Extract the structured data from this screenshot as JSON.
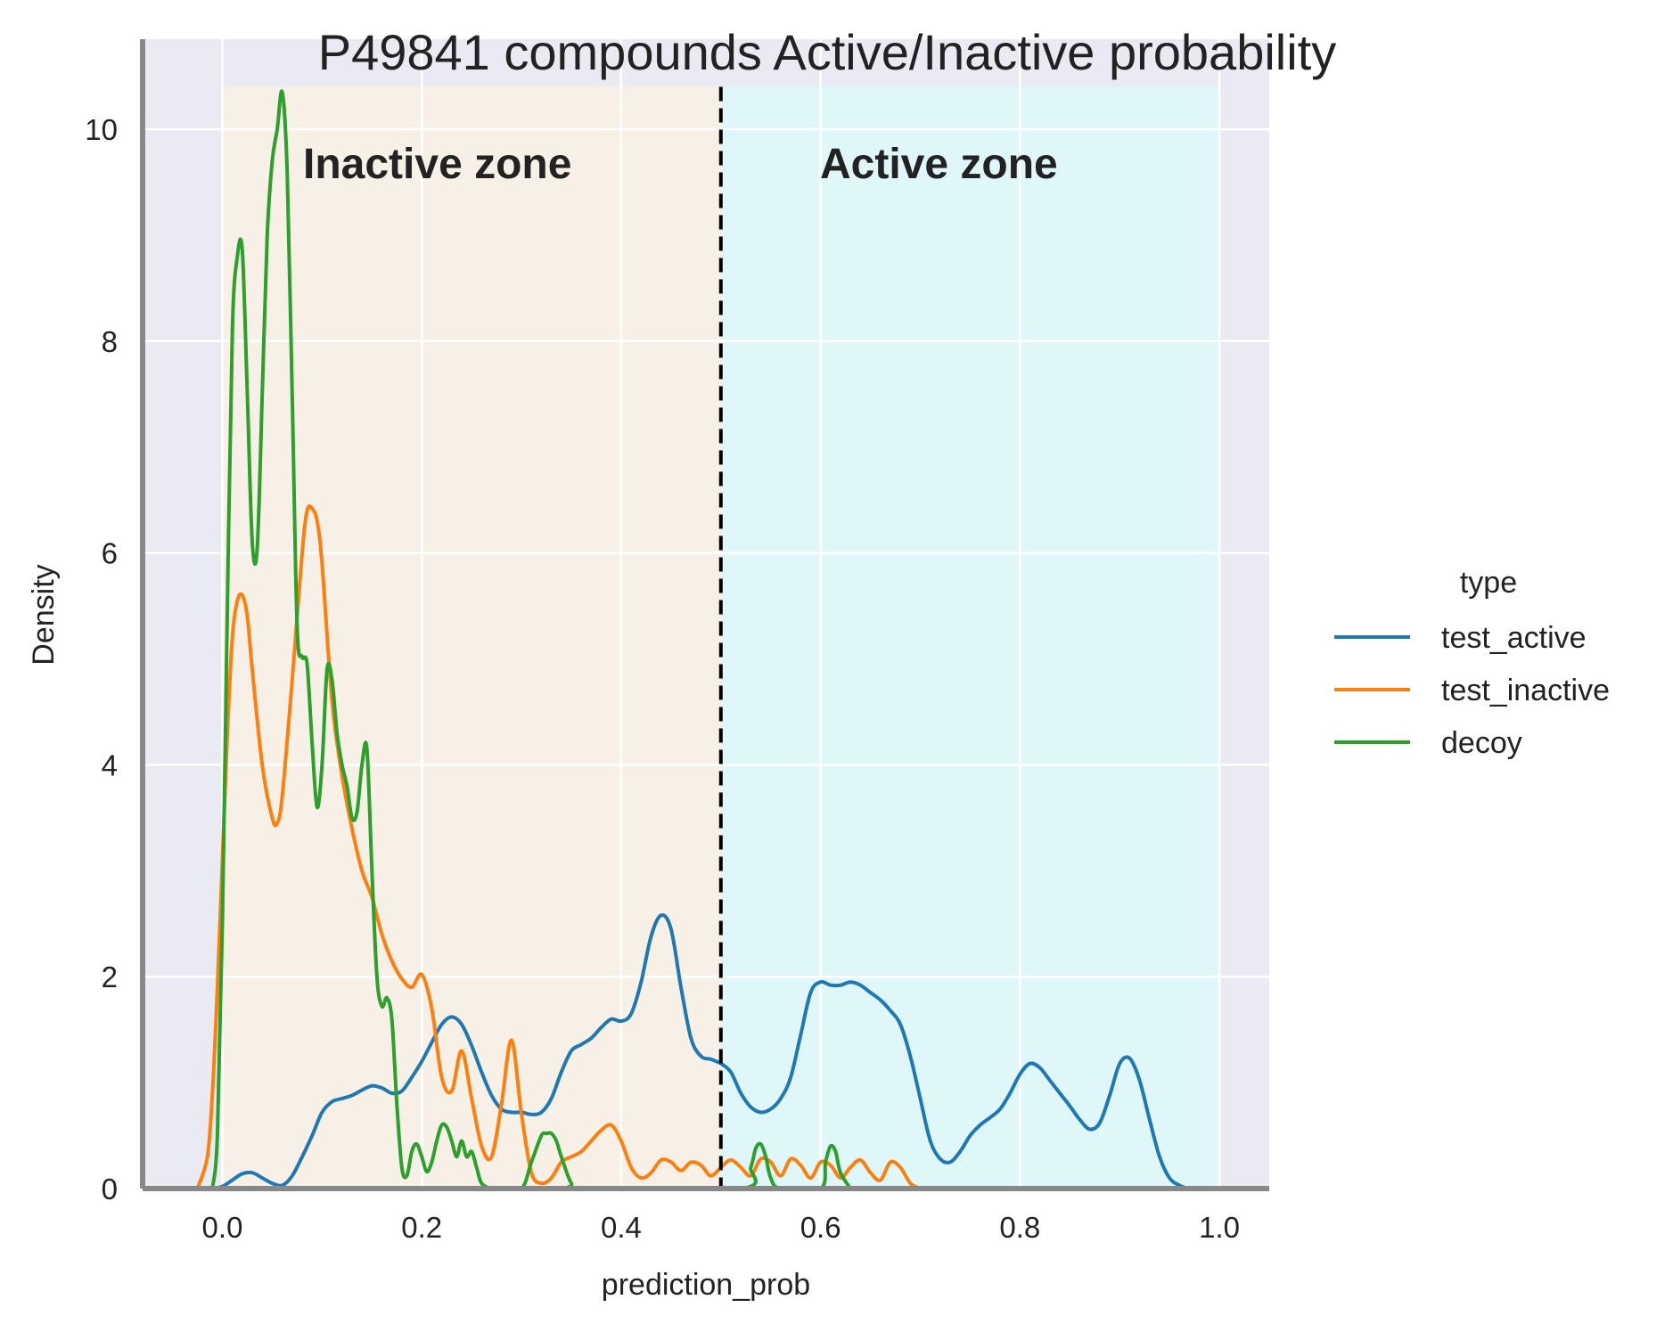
{
  "chart_data": {
    "type": "line",
    "title": "P49841 compounds Active/Inactive probability",
    "xlabel": "prediction_prob",
    "ylabel": "Density",
    "xlim": [
      -0.08,
      1.05
    ],
    "ylim": [
      0,
      10.85
    ],
    "xticks": [
      0.0,
      0.2,
      0.4,
      0.6,
      0.8,
      1.0
    ],
    "xtick_labels": [
      "0.0",
      "0.2",
      "0.4",
      "0.6",
      "0.8",
      "1.0"
    ],
    "yticks": [
      0,
      2,
      4,
      6,
      8,
      10
    ],
    "ytick_labels": [
      "0",
      "2",
      "4",
      "6",
      "8",
      "10"
    ],
    "grid": true,
    "threshold": 0.5,
    "zones": [
      {
        "label": "Inactive zone",
        "x_range": [
          0.0,
          0.5
        ],
        "y_top": 10.4,
        "color": "#f7f0e6"
      },
      {
        "label": "Active zone",
        "x_range": [
          0.5,
          1.0
        ],
        "y_top": 10.4,
        "color": "#e0f7fa"
      }
    ],
    "legend": {
      "title": "type",
      "position": "right"
    },
    "series": [
      {
        "name": "test_active",
        "color": "#1f77b4",
        "x": [
          -0.01,
          0.0,
          0.01,
          0.02,
          0.03,
          0.04,
          0.05,
          0.06,
          0.07,
          0.08,
          0.09,
          0.1,
          0.11,
          0.12,
          0.13,
          0.14,
          0.15,
          0.16,
          0.17,
          0.18,
          0.19,
          0.2,
          0.21,
          0.22,
          0.23,
          0.24,
          0.25,
          0.26,
          0.27,
          0.28,
          0.29,
          0.3,
          0.31,
          0.32,
          0.33,
          0.34,
          0.35,
          0.36,
          0.37,
          0.38,
          0.39,
          0.4,
          0.41,
          0.42,
          0.43,
          0.44,
          0.45,
          0.46,
          0.47,
          0.48,
          0.49,
          0.5,
          0.51,
          0.52,
          0.53,
          0.54,
          0.55,
          0.56,
          0.57,
          0.58,
          0.59,
          0.6,
          0.61,
          0.62,
          0.63,
          0.64,
          0.65,
          0.66,
          0.67,
          0.68,
          0.69,
          0.7,
          0.71,
          0.72,
          0.73,
          0.74,
          0.75,
          0.76,
          0.77,
          0.78,
          0.79,
          0.8,
          0.81,
          0.82,
          0.83,
          0.84,
          0.85,
          0.86,
          0.87,
          0.88,
          0.89,
          0.9,
          0.91,
          0.92,
          0.93,
          0.94,
          0.95,
          0.96,
          0.97,
          0.98
        ],
        "y": [
          0.0,
          0.02,
          0.08,
          0.14,
          0.15,
          0.1,
          0.05,
          0.03,
          0.12,
          0.3,
          0.5,
          0.72,
          0.82,
          0.85,
          0.88,
          0.93,
          0.97,
          0.95,
          0.9,
          0.92,
          1.05,
          1.2,
          1.38,
          1.55,
          1.62,
          1.55,
          1.35,
          1.1,
          0.88,
          0.75,
          0.72,
          0.72,
          0.7,
          0.72,
          0.85,
          1.1,
          1.3,
          1.36,
          1.42,
          1.52,
          1.6,
          1.58,
          1.65,
          1.95,
          2.38,
          2.58,
          2.45,
          1.9,
          1.42,
          1.25,
          1.22,
          1.18,
          1.1,
          0.9,
          0.77,
          0.72,
          0.75,
          0.85,
          1.05,
          1.45,
          1.85,
          1.95,
          1.92,
          1.92,
          1.95,
          1.92,
          1.85,
          1.78,
          1.68,
          1.55,
          1.25,
          0.85,
          0.45,
          0.28,
          0.25,
          0.35,
          0.5,
          0.6,
          0.67,
          0.75,
          0.9,
          1.08,
          1.18,
          1.14,
          1.02,
          0.9,
          0.78,
          0.65,
          0.56,
          0.62,
          0.88,
          1.18,
          1.23,
          1.02,
          0.65,
          0.3,
          0.1,
          0.03,
          0.0,
          0.0
        ]
      },
      {
        "name": "test_inactive",
        "color": "#ff7f0e",
        "x": [
          -0.025,
          -0.015,
          -0.01,
          -0.005,
          0.0,
          0.005,
          0.01,
          0.015,
          0.02,
          0.025,
          0.03,
          0.04,
          0.05,
          0.055,
          0.06,
          0.07,
          0.08,
          0.085,
          0.09,
          0.095,
          0.1,
          0.11,
          0.12,
          0.13,
          0.14,
          0.15,
          0.16,
          0.17,
          0.18,
          0.19,
          0.2,
          0.21,
          0.22,
          0.23,
          0.24,
          0.25,
          0.26,
          0.27,
          0.28,
          0.29,
          0.3,
          0.31,
          0.32,
          0.33,
          0.34,
          0.35,
          0.36,
          0.37,
          0.38,
          0.39,
          0.4,
          0.41,
          0.42,
          0.43,
          0.44,
          0.45,
          0.46,
          0.47,
          0.48,
          0.49,
          0.5,
          0.51,
          0.52,
          0.53,
          0.54,
          0.55,
          0.56,
          0.57,
          0.58,
          0.59,
          0.6,
          0.61,
          0.62,
          0.63,
          0.64,
          0.65,
          0.66,
          0.67,
          0.68,
          0.69,
          0.7
        ],
        "y": [
          0.0,
          0.3,
          0.9,
          1.9,
          3.1,
          4.3,
          5.2,
          5.55,
          5.6,
          5.4,
          4.9,
          4.0,
          3.5,
          3.45,
          3.7,
          4.8,
          6.0,
          6.4,
          6.42,
          6.3,
          5.9,
          4.6,
          3.9,
          3.4,
          3.0,
          2.75,
          2.4,
          2.15,
          1.98,
          1.9,
          2.02,
          1.7,
          1.05,
          0.92,
          1.3,
          0.85,
          0.4,
          0.3,
          0.8,
          1.4,
          0.7,
          0.15,
          0.05,
          0.1,
          0.25,
          0.3,
          0.35,
          0.45,
          0.55,
          0.6,
          0.45,
          0.2,
          0.1,
          0.15,
          0.27,
          0.25,
          0.17,
          0.25,
          0.22,
          0.12,
          0.2,
          0.27,
          0.2,
          0.12,
          0.28,
          0.25,
          0.12,
          0.28,
          0.22,
          0.1,
          0.25,
          0.22,
          0.1,
          0.2,
          0.27,
          0.15,
          0.08,
          0.25,
          0.2,
          0.05,
          0.0
        ]
      },
      {
        "name": "decoy",
        "color": "#2ca02c",
        "x": [
          -0.01,
          -0.005,
          0.0,
          0.005,
          0.01,
          0.015,
          0.02,
          0.025,
          0.03,
          0.035,
          0.04,
          0.045,
          0.05,
          0.055,
          0.06,
          0.065,
          0.07,
          0.075,
          0.08,
          0.085,
          0.09,
          0.095,
          0.1,
          0.105,
          0.11,
          0.115,
          0.12,
          0.125,
          0.13,
          0.135,
          0.14,
          0.145,
          0.15,
          0.155,
          0.16,
          0.165,
          0.17,
          0.175,
          0.18,
          0.185,
          0.19,
          0.195,
          0.2,
          0.205,
          0.21,
          0.215,
          0.22,
          0.225,
          0.23,
          0.235,
          0.24,
          0.245,
          0.25,
          0.255,
          0.26,
          0.27,
          0.28,
          0.3,
          0.31,
          0.32,
          0.325,
          0.33,
          0.335,
          0.34,
          0.35,
          0.36,
          0.52,
          0.53,
          0.535,
          0.54,
          0.545,
          0.55,
          0.56,
          0.6,
          0.605,
          0.61,
          0.615,
          0.62,
          0.63
        ],
        "y": [
          0.0,
          0.5,
          2.5,
          5.5,
          8.1,
          8.8,
          8.85,
          7.5,
          6.1,
          6.05,
          7.5,
          9.0,
          9.7,
          10.0,
          10.35,
          9.6,
          7.5,
          5.3,
          5.02,
          4.95,
          4.2,
          3.6,
          4.0,
          4.9,
          4.8,
          4.3,
          4.0,
          3.8,
          3.5,
          3.55,
          4.0,
          4.15,
          3.0,
          2.0,
          1.72,
          1.8,
          1.6,
          0.8,
          0.2,
          0.12,
          0.35,
          0.42,
          0.3,
          0.16,
          0.25,
          0.45,
          0.6,
          0.58,
          0.45,
          0.3,
          0.45,
          0.3,
          0.35,
          0.2,
          0.05,
          0.0,
          0.0,
          0.0,
          0.25,
          0.5,
          0.52,
          0.52,
          0.45,
          0.3,
          0.05,
          0.0,
          0.0,
          0.2,
          0.38,
          0.42,
          0.3,
          0.1,
          0.0,
          0.0,
          0.25,
          0.4,
          0.35,
          0.15,
          0.0
        ]
      }
    ]
  }
}
